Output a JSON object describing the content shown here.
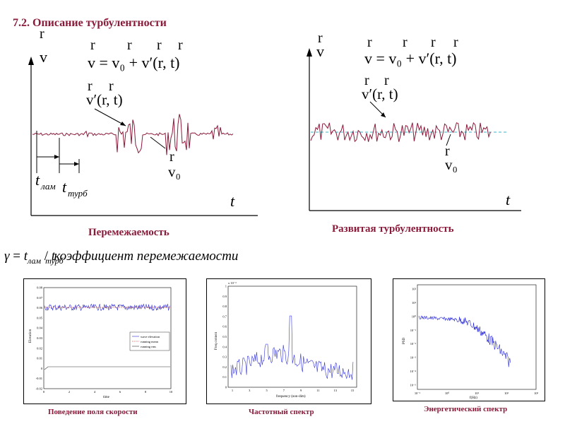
{
  "slide": {
    "title": "7.2. Описание турбулентности"
  },
  "left_diagram": {
    "caption": "Перемежаемость",
    "axis_v": "v",
    "axis_t": "t",
    "vec_mark": "r",
    "formula": "v = v₀ + v′(r, t)",
    "fluct_label": "v′(r, t)",
    "mean_label": "v₀",
    "t_lam": "t",
    "t_lam_sub": "лам",
    "t_turb": "t",
    "t_turb_sub": "турб",
    "line_color": "#8b1a3a"
  },
  "right_diagram": {
    "caption": "Развитая турбулентность",
    "axis_v": "v",
    "axis_t": "t",
    "vec_mark": "r",
    "formula": "v = v₀ + v′(r, t)",
    "fluct_label": "v′(r, t)",
    "mean_label": "v₀",
    "line_color": "#8b1a3a",
    "mean_color": "#3cb4c8"
  },
  "intermittency": {
    "gamma": "γ",
    "eq": "=",
    "t_lam": "t",
    "t_lam_sub": "лам",
    "slash": "/",
    "t_turb": "t",
    "t_turb_sub": "турб",
    "text": "коэффициент перемежаемости"
  },
  "panels": [
    {
      "caption": "Поведение поля скорости",
      "ylabel": "Elevation",
      "xlabel": "time",
      "yticks": [
        "0.08",
        "0.07",
        "0.06",
        "0.05",
        "0.04",
        "0.03",
        "0.02",
        "0.01",
        "0",
        "-0.01",
        "-0.02"
      ],
      "xticks": [
        "0",
        "2",
        "4",
        "6",
        "8",
        "10"
      ],
      "legend": [
        "wave elevation",
        "running mean",
        "running rms"
      ]
    },
    {
      "caption": "Частотный спектр",
      "ylabel": "Freq content",
      "xlabel": "frequency (non-dim)",
      "scale_note": "x 10⁻³",
      "yticks": [
        "1",
        "0.9",
        "0.8",
        "0.7",
        "0.6",
        "0.5",
        "0.4",
        "0.3",
        "0.2",
        "0.1",
        "0"
      ],
      "xticks": [
        "1",
        "3",
        "5",
        "7",
        "9",
        "11",
        "13",
        "15"
      ]
    },
    {
      "caption": "Энергетический спектр",
      "ylabel": "PSD",
      "xlabel": "f(Hz)",
      "yticks": [
        "10²",
        "10¹",
        "10⁰",
        "10⁻¹",
        "10⁻²",
        "10⁻³",
        "10⁻⁴",
        "10⁻⁵"
      ],
      "xticks": [
        "10⁻¹",
        "10⁰",
        "10¹",
        "10²",
        "10³"
      ]
    }
  ]
}
